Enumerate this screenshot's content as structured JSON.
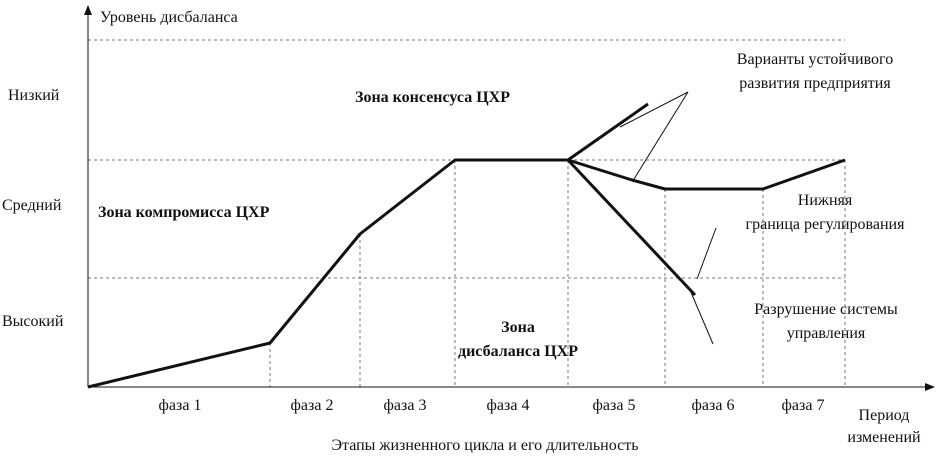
{
  "y_axis_title": "Уровень дисбаланса",
  "levels": [
    "Низкий",
    "Средний",
    "Высокий"
  ],
  "zones": {
    "consensus": "Зона консенсуса ЦХР",
    "compromise": "Зона компромисса ЦХР",
    "imbalance": [
      "Зона",
      "дисбаланса ЦХР"
    ]
  },
  "annotations": {
    "variants": [
      "Варианты устойчивого",
      "развития предприятия"
    ],
    "lower_bound": [
      "Нижняя",
      "граница регулирования"
    ],
    "collapse": [
      "Разрушение системы",
      "управления"
    ]
  },
  "phases": [
    "фаза 1",
    "фаза 2",
    "фаза 3",
    "фаза 4",
    "фаза 5",
    "фаза 6",
    "фаза 7"
  ],
  "x_axis_title": [
    "Период",
    "изменений"
  ],
  "caption": "Этапы жизненного цикла и его длительность"
}
